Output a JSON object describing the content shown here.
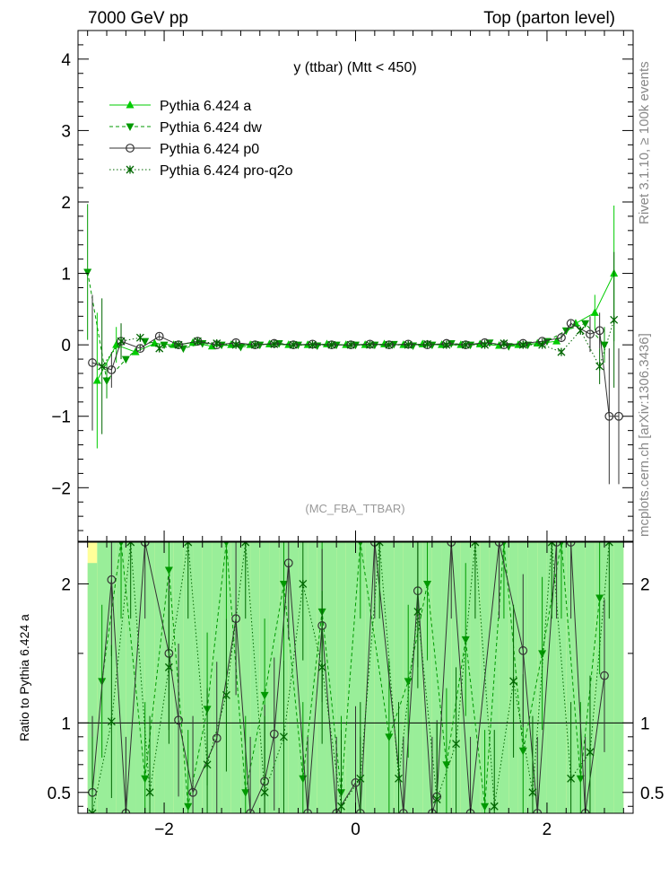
{
  "header": {
    "left": "7000 GeV pp",
    "right": "Top (parton level)"
  },
  "side": {
    "rivet": "Rivet 3.1.10, ≥ 100k events",
    "mcplots": "mcplots.cern.ch [arXiv:1306.3436]"
  },
  "colors": {
    "a": "#00cc00",
    "dw": "#009900",
    "p0": "#333333",
    "q2o": "#006600",
    "band_yellow": "#ffff99",
    "band_green": "#99ee99"
  },
  "chart_data": [
    {
      "type": "line",
      "title": "y (ttbar) (Mtt < 450)",
      "watermark": "(MC_FBA_TTBAR)",
      "xlabel": "",
      "ylabel": "",
      "xlim": [
        -2.9,
        2.9
      ],
      "ylim": [
        -2.75,
        4.4
      ],
      "yticks": [
        -2,
        -1,
        0,
        1,
        2,
        3,
        4
      ],
      "ytick_labels": [
        "−2",
        "−1",
        "0",
        "1",
        "2",
        "3",
        "4"
      ],
      "xticks": [
        -2,
        0,
        2
      ],
      "legend_position": "top-left",
      "series": [
        {
          "name": "Pythia 6.424 a",
          "style": "solid",
          "marker": "triangle-up",
          "x": [
            -2.7,
            -2.5,
            -2.3,
            -2.1,
            -1.9,
            -1.7,
            -1.5,
            -1.3,
            -1.1,
            -0.9,
            -0.7,
            -0.5,
            -0.3,
            -0.1,
            0.1,
            0.3,
            0.5,
            0.7,
            0.9,
            1.1,
            1.3,
            1.5,
            1.7,
            1.9,
            2.1,
            2.3,
            2.5,
            2.7
          ],
          "y": [
            -0.5,
            0.0,
            -0.1,
            0.02,
            0.0,
            0.03,
            -0.02,
            0.0,
            0.0,
            0.01,
            0.0,
            0.0,
            0.01,
            0.0,
            0.0,
            0.01,
            0.0,
            0.01,
            0.0,
            0.0,
            0.01,
            -0.01,
            0.0,
            0.02,
            0.05,
            0.3,
            0.45,
            1.0
          ]
        },
        {
          "name": "Pythia 6.424 dw",
          "style": "dashed",
          "marker": "triangle-down",
          "x": [
            -2.8,
            -2.6,
            -2.4,
            -2.2,
            -2.0,
            -1.8,
            -1.6,
            -1.4,
            -1.2,
            -1.0,
            -0.8,
            -0.6,
            -0.4,
            -0.2,
            0.0,
            0.2,
            0.4,
            0.6,
            0.8,
            1.0,
            1.2,
            1.4,
            1.6,
            1.8,
            2.0,
            2.2,
            2.4,
            2.6
          ],
          "y": [
            1.02,
            -0.5,
            -0.2,
            0.05,
            0.0,
            -0.05,
            0.02,
            0.0,
            -0.03,
            0.0,
            0.02,
            0.0,
            -0.01,
            0.0,
            0.0,
            0.0,
            0.01,
            -0.01,
            0.0,
            0.02,
            0.0,
            0.03,
            -0.02,
            0.0,
            0.05,
            0.2,
            0.3,
            0.0
          ]
        },
        {
          "name": "Pythia 6.424 p0",
          "style": "solid",
          "marker": "open-circle",
          "x": [
            -2.75,
            -2.55,
            -2.45,
            -2.25,
            -2.05,
            -1.85,
            -1.65,
            -1.45,
            -1.25,
            -1.05,
            -0.85,
            -0.65,
            -0.45,
            -0.25,
            -0.05,
            0.15,
            0.35,
            0.55,
            0.75,
            0.95,
            1.15,
            1.35,
            1.55,
            1.75,
            1.95,
            2.15,
            2.25,
            2.45,
            2.55,
            2.65,
            2.75
          ],
          "y": [
            -0.25,
            -0.35,
            0.05,
            -0.05,
            0.12,
            0.0,
            0.05,
            0.0,
            0.03,
            0.0,
            0.02,
            0.0,
            0.01,
            0.0,
            0.0,
            0.01,
            0.0,
            0.01,
            0.0,
            0.02,
            0.0,
            0.03,
            0.0,
            0.02,
            0.05,
            0.1,
            0.3,
            0.15,
            0.2,
            -1.0,
            -1.0
          ]
        },
        {
          "name": "Pythia 6.424 pro-q2o",
          "style": "dotted",
          "marker": "star",
          "x": [
            -2.65,
            -2.45,
            -2.25,
            -2.05,
            -1.85,
            -1.65,
            -1.45,
            -1.25,
            -1.05,
            -0.85,
            -0.65,
            -0.45,
            -0.25,
            -0.05,
            0.15,
            0.35,
            0.55,
            0.75,
            0.95,
            1.15,
            1.35,
            1.55,
            1.75,
            1.95,
            2.15,
            2.35,
            2.55,
            2.7
          ],
          "y": [
            -0.3,
            0.05,
            0.1,
            -0.05,
            0.0,
            0.05,
            0.02,
            0.0,
            0.0,
            0.01,
            0.0,
            0.0,
            0.0,
            0.0,
            0.0,
            0.0,
            0.0,
            0.01,
            0.0,
            0.0,
            0.0,
            0.02,
            0.0,
            0.0,
            -0.1,
            0.2,
            -0.3,
            0.35
          ]
        }
      ]
    },
    {
      "type": "line",
      "title": "",
      "ylabel": "Ratio to Pythia 6.424 a",
      "xlim": [
        -2.9,
        2.9
      ],
      "ylim": [
        0.35,
        2.3
      ],
      "yticks": [
        0.5,
        1,
        2
      ],
      "ytick_labels": [
        "0.5",
        "1",
        "2"
      ],
      "xticks": [
        -2,
        0,
        2
      ],
      "xtick_labels": [
        "−2",
        "0",
        "2"
      ],
      "reference_line": 1,
      "band": {
        "x_edges": [
          -2.8,
          -2.7,
          -2.6,
          -2.5,
          -2.4,
          -2.3,
          -2.2,
          -2.1,
          -2.0,
          -1.9,
          -1.8,
          -1.7,
          -1.6,
          -1.5,
          -1.4,
          -1.3,
          -1.2,
          -1.1,
          -1.0,
          -0.9,
          -0.8,
          -0.7,
          -0.6,
          -0.5,
          -0.4,
          -0.3,
          -0.2,
          -0.1,
          0.0,
          0.1,
          0.2,
          0.3,
          0.4,
          0.5,
          0.6,
          0.7,
          0.8,
          0.9,
          1.0,
          1.1,
          1.2,
          1.3,
          1.4,
          1.5,
          1.6,
          1.7,
          1.8,
          1.9,
          2.0,
          2.1,
          2.2,
          2.3,
          2.4,
          2.5,
          2.6,
          2.7,
          2.8
        ],
        "yellow_top": [
          2.3,
          2.3,
          2.3,
          2.3,
          2.3,
          2.3,
          2.3,
          2.3,
          2.3,
          2.3,
          2.3,
          2.3,
          2.3,
          2.3,
          2.3,
          2.3,
          2.3,
          2.3,
          2.3,
          2.3,
          2.3,
          2.3,
          2.3,
          2.3,
          2.3,
          2.3,
          2.3,
          2.3,
          2.3,
          2.3,
          2.3,
          2.3,
          2.3,
          2.3,
          2.3,
          2.3,
          2.3,
          2.3,
          2.3,
          2.3,
          2.3,
          2.3,
          2.3,
          2.3,
          2.3,
          2.3,
          2.3,
          2.3,
          2.3,
          2.3,
          2.3,
          2.3,
          2.3,
          2.3,
          2.3,
          2.3
        ],
        "green_top": [
          2.15,
          2.3,
          2.3,
          2.3,
          2.3,
          2.3,
          2.3,
          2.3,
          2.3,
          2.3,
          2.3,
          2.3,
          2.3,
          2.3,
          2.3,
          2.3,
          2.3,
          2.3,
          2.3,
          2.3,
          2.3,
          2.3,
          2.3,
          2.3,
          2.3,
          2.3,
          2.3,
          2.3,
          2.3,
          2.3,
          2.3,
          2.3,
          2.3,
          2.3,
          2.3,
          2.3,
          2.3,
          2.3,
          2.3,
          2.3,
          2.3,
          2.3,
          2.3,
          2.3,
          2.3,
          2.3,
          2.3,
          2.3,
          2.3,
          2.3,
          2.3,
          2.3,
          2.3,
          2.3,
          2.3,
          2.3
        ],
        "green_bottom": [
          0.35,
          0.35,
          0.35,
          0.35,
          0.35,
          0.35,
          0.35,
          0.35,
          0.35,
          0.35,
          0.35,
          0.35,
          0.35,
          0.35,
          0.35,
          0.35,
          0.35,
          0.35,
          0.35,
          0.35,
          0.35,
          0.35,
          0.35,
          0.35,
          0.35,
          0.35,
          0.35,
          0.35,
          0.35,
          0.35,
          0.35,
          0.35,
          0.35,
          0.35,
          0.35,
          0.35,
          0.35,
          0.35,
          0.35,
          0.35,
          0.35,
          0.35,
          0.35,
          0.35,
          0.35,
          0.35,
          0.35,
          0.35,
          0.35,
          0.35,
          0.35,
          0.35,
          0.35,
          0.35,
          0.35,
          0.35
        ]
      },
      "series": [
        {
          "name": "Pythia 6.424 dw",
          "style": "dashed",
          "marker": "triangle-down",
          "x": [
            -2.65,
            -2.45,
            -2.2,
            -1.95,
            -1.75,
            -1.55,
            -1.35,
            -1.15,
            -0.95,
            -0.75,
            -0.55,
            -0.35,
            -0.15,
            0.05,
            0.35,
            0.55,
            0.75,
            0.95,
            1.15,
            1.35,
            1.55,
            1.75,
            1.95,
            2.15,
            2.35,
            2.55
          ],
          "y": [
            1.3,
            2.3,
            0.6,
            2.1,
            0.4,
            1.1,
            2.3,
            0.5,
            1.2,
            2.0,
            0.6,
            1.8,
            0.5,
            2.3,
            0.9,
            1.3,
            2.0,
            0.7,
            1.6,
            0.4,
            2.3,
            0.8,
            1.5,
            2.3,
            0.6,
            1.9
          ]
        },
        {
          "name": "Pythia 6.424 p0",
          "style": "solid",
          "marker": "open-circle",
          "x": [
            -2.75,
            -2.55,
            -2.4,
            -2.2,
            -1.95,
            -1.85,
            -1.7,
            -1.45,
            -1.25,
            -1.1,
            -0.95,
            -0.85,
            -0.7,
            -0.5,
            -0.35,
            -0.2,
            0.0,
            0.05,
            0.2,
            0.5,
            0.65,
            0.8,
            0.85,
            1.0,
            1.2,
            1.5,
            1.75,
            1.9,
            2.1,
            2.25,
            2.4,
            2.6
          ],
          "y": [
            0.5,
            2.03,
            0.35,
            2.3,
            1.5,
            1.02,
            0.5,
            0.89,
            1.75,
            0.35,
            0.58,
            0.92,
            2.15,
            0.35,
            1.7,
            0.35,
            0.57,
            0.35,
            2.3,
            0.35,
            1.95,
            0.35,
            0.47,
            2.3,
            0.35,
            2.3,
            1.52,
            0.35,
            2.3,
            2.3,
            0.35,
            1.34
          ]
        },
        {
          "name": "Pythia 6.424 pro-q2o",
          "style": "dotted",
          "marker": "star",
          "x": [
            -2.75,
            -2.55,
            -2.35,
            -2.15,
            -1.95,
            -1.75,
            -1.55,
            -1.35,
            -1.15,
            -0.95,
            -0.75,
            -0.55,
            -0.35,
            -0.15,
            0.05,
            0.25,
            0.45,
            0.65,
            0.85,
            1.05,
            1.25,
            1.45,
            1.65,
            1.85,
            2.05,
            2.25,
            2.45,
            2.65
          ],
          "y": [
            0.35,
            1.01,
            2.3,
            0.5,
            1.4,
            2.3,
            0.7,
            1.2,
            2.3,
            0.5,
            0.9,
            2.0,
            1.4,
            0.4,
            0.6,
            2.3,
            0.6,
            1.8,
            0.45,
            0.85,
            2.3,
            0.4,
            1.3,
            0.5,
            2.3,
            0.6,
            0.79,
            2.3
          ]
        }
      ]
    }
  ]
}
